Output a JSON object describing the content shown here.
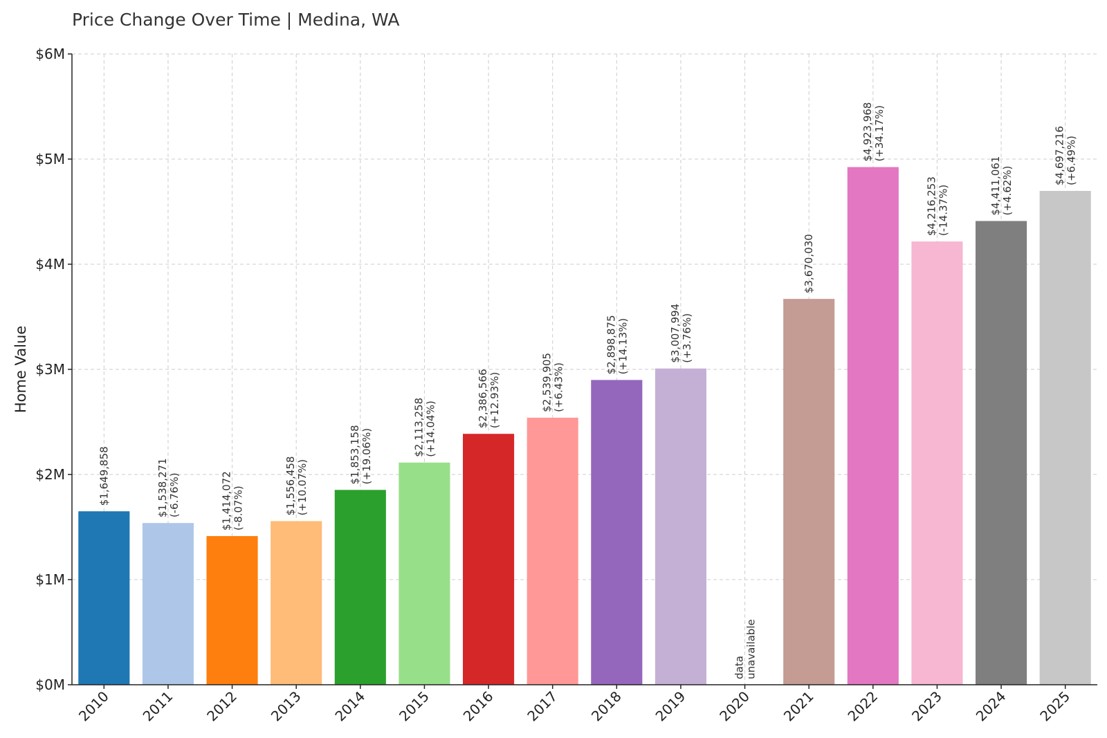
{
  "chart_data": {
    "type": "bar",
    "title": "Price Change Over Time | Medina, WA",
    "xlabel": "",
    "ylabel": "Home Value",
    "ylim": [
      0,
      6000000
    ],
    "yticks": [
      {
        "value": 0,
        "label": "$0M"
      },
      {
        "value": 1000000,
        "label": "$1M"
      },
      {
        "value": 2000000,
        "label": "$2M"
      },
      {
        "value": 3000000,
        "label": "$3M"
      },
      {
        "value": 4000000,
        "label": "$4M"
      },
      {
        "value": 5000000,
        "label": "$5M"
      },
      {
        "value": 6000000,
        "label": "$6M"
      }
    ],
    "grid": true,
    "categories": [
      "2010",
      "2011",
      "2012",
      "2013",
      "2014",
      "2015",
      "2016",
      "2017",
      "2018",
      "2019",
      "2020",
      "2021",
      "2022",
      "2023",
      "2024",
      "2025"
    ],
    "values": [
      1649858,
      1538271,
      1414072,
      1556458,
      1853158,
      2113258,
      2386566,
      2539905,
      2898875,
      3007994,
      null,
      3670030,
      4923968,
      4216253,
      4411061,
      4697216
    ],
    "labels": [
      [
        "$1,649,858"
      ],
      [
        "$1,538,271",
        "(-6.76%)"
      ],
      [
        "$1,414,072",
        "(-8.07%)"
      ],
      [
        "$1,556,458",
        "(+10.07%)"
      ],
      [
        "$1,853,158",
        "(+19.06%)"
      ],
      [
        "$2,113,258",
        "(+14.04%)"
      ],
      [
        "$2,386,566",
        "(+12.93%)"
      ],
      [
        "$2,539,905",
        "(+6.43%)"
      ],
      [
        "$2,898,875",
        "(+14.13%)"
      ],
      [
        "$3,007,994",
        "(+3.76%)"
      ],
      [
        "data",
        "unavailable"
      ],
      [
        "$3,670,030"
      ],
      [
        "$4,923,968",
        "(+34.17%)"
      ],
      [
        "$4,216,253",
        "(-14.37%)"
      ],
      [
        "$4,411,061",
        "(+4.62%)"
      ],
      [
        "$4,697,216",
        "(+6.49%)"
      ]
    ],
    "colors": [
      "#1f77b4",
      "#aec7e8",
      "#ff7f0e",
      "#ffbb78",
      "#2ca02c",
      "#98df8a",
      "#d62728",
      "#ff9896",
      "#9467bd",
      "#c5b0d5",
      null,
      "#c49c94",
      "#e377c2",
      "#f7b6d2",
      "#7f7f7f",
      "#c7c7c7"
    ]
  }
}
